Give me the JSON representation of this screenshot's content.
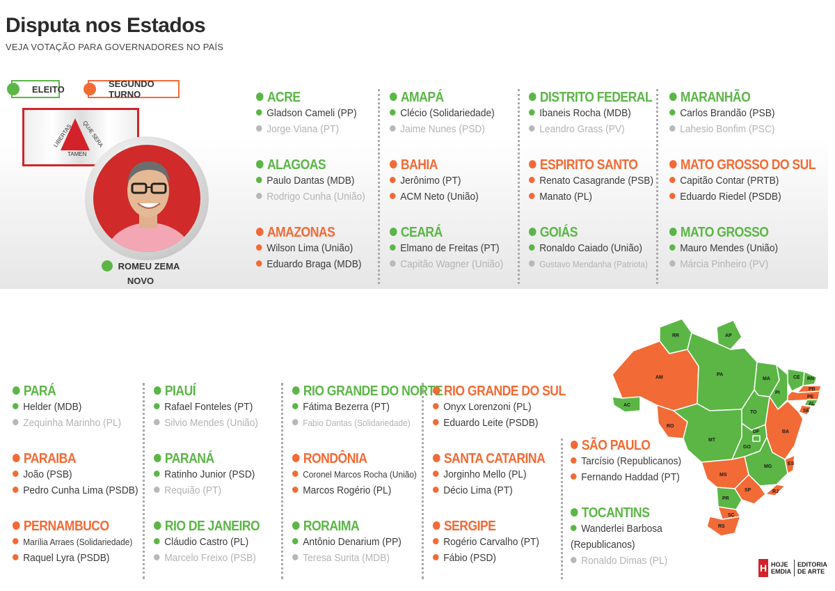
{
  "header": {
    "title": "Disputa nos Estados",
    "subtitle": "VEJA VOTAÇÃO PARA GOVERNADORES NO PAÍS"
  },
  "legend": {
    "elected": "ELEITO",
    "runoff": "SEGUNDO TURNO"
  },
  "colors": {
    "elected": "#5bb646",
    "runoff": "#f26a35",
    "lost": "#b8b8b8"
  },
  "flag": {
    "motto_1": "LIBERTAS",
    "motto_2": "QUÆ SERA",
    "motto_3": "TAMEN"
  },
  "featured": {
    "name": "ROMEU ZEMA",
    "party": "NOVO"
  },
  "states": {
    "acre": {
      "name": "ACRE",
      "status": "elected",
      "c1": "Gladson Cameli (PP)",
      "c2": "Jorge Viana (PT)"
    },
    "alagoas": {
      "name": "ALAGOAS",
      "status": "elected",
      "c1": "Paulo Dantas (MDB)",
      "c2": "Rodrigo Cunha (União)"
    },
    "amazonas": {
      "name": "AMAZONAS",
      "status": "runoff",
      "c1": "Wilson Lima (União)",
      "c2": "Eduardo Braga (MDB)"
    },
    "amapa": {
      "name": "AMAPÁ",
      "status": "elected",
      "c1": "Clécio (Solidariedade)",
      "c2": "Jaime Nunes (PSD)"
    },
    "bahia": {
      "name": "BAHIA",
      "status": "runoff",
      "c1": "Jerônimo (PT)",
      "c2": "ACM Neto (União)"
    },
    "ceara": {
      "name": "CEARÁ",
      "status": "elected",
      "c1": "Elmano de Freitas (PT)",
      "c2": "Capitão Wagner (União)"
    },
    "df": {
      "name": "DISTRITO FEDERAL",
      "status": "elected",
      "c1": "Ibaneis Rocha (MDB)",
      "c2": "Leandro Grass (PV)"
    },
    "es": {
      "name": "ESPIRITO SANTO",
      "status": "runoff",
      "c1": "Renato Casagrande (PSB)",
      "c2": "Manato (PL)"
    },
    "goias": {
      "name": "GOIÁS",
      "status": "elected",
      "c1": "Ronaldo Caiado (União)",
      "c2": "Gustavo Mendanha (Patriota)"
    },
    "maranhao": {
      "name": "MARANHÃO",
      "status": "elected",
      "c1": "Carlos Brandão (PSB)",
      "c2": "Lahesio Bonfim (PSC)"
    },
    "ms": {
      "name": "MATO GROSSO DO SUL",
      "status": "runoff",
      "c1": "Capitão Contar (PRTB)",
      "c2": "Eduardo Riedel (PSDB)"
    },
    "mt": {
      "name": "MATO GROSSO",
      "status": "elected",
      "c1": "Mauro Mendes (União)",
      "c2": "Márcia Pinheiro (PV)"
    },
    "para": {
      "name": "PARÁ",
      "status": "elected",
      "c1": "Helder (MDB)",
      "c2": "Zequinha Marinho (PL)"
    },
    "paraiba": {
      "name": "PARAIBA",
      "status": "runoff",
      "c1": "João (PSB)",
      "c2": "Pedro Cunha Lima (PSDB)"
    },
    "pernambuco": {
      "name": "PERNAMBUCO",
      "status": "runoff",
      "c1": "Marília Arraes (Solidariedade)",
      "c2": "Raquel Lyra (PSDB)"
    },
    "piaui": {
      "name": "PIAUÍ",
      "status": "elected",
      "c1": "Rafael Fonteles (PT)",
      "c2": "Silvio Mendes (União)"
    },
    "parana": {
      "name": "PARANÁ",
      "status": "elected",
      "c1": "Ratinho Junior (PSD)",
      "c2": "Requião (PT)"
    },
    "rj": {
      "name": "RIO DE JANEIRO",
      "status": "elected",
      "c1": "Cláudio Castro (PL)",
      "c2": "Marcelo Freixo (PSB)"
    },
    "rn": {
      "name": "RIO GRANDE DO NORTE",
      "status": "elected",
      "c1": "Fátima Bezerra (PT)",
      "c2": "Fabio Dantas (Solidariedade)"
    },
    "rondonia": {
      "name": "RONDÔNIA",
      "status": "runoff",
      "c1": "Coronel Marcos Rocha (União)",
      "c2": "Marcos Rogério (PL)"
    },
    "roraima": {
      "name": "RORAIMA",
      "status": "elected",
      "c1": "Antônio Denarium (PP)",
      "c2": "Teresa Surita (MDB)"
    },
    "rs": {
      "name": "RIO GRANDE DO SUL",
      "status": "runoff",
      "c1": "Onyx Lorenzoni (PL)",
      "c2": "Eduardo Leite (PSDB)"
    },
    "sc": {
      "name": "SANTA CATARINA",
      "status": "runoff",
      "c1": "Jorginho Mello (PL)",
      "c2": "Décio Lima (PT)"
    },
    "sergipe": {
      "name": "SERGIPE",
      "status": "runoff",
      "c1": "Rogério Carvalho (PT)",
      "c2": "Fábio (PSD)"
    },
    "sp": {
      "name": "SÃO PAULO",
      "status": "runoff",
      "c1": "Tarcísio (Republicanos)",
      "c2": "Fernando Haddad (PT)"
    },
    "tocantins": {
      "name": "TOCANTINS",
      "status": "elected",
      "c1": "Wanderlei Barbosa (Republicanos)",
      "c2": "Ronaldo Dimas (PL)"
    }
  },
  "map_labels": {
    "rr": "RR",
    "ap": "AP",
    "am": "AM",
    "pa": "PA",
    "ma": "MA",
    "ce": "CE",
    "rn": "RN",
    "pb": "PB",
    "pe": "PE",
    "al": "AL",
    "se": "SE",
    "pi": "PI",
    "to": "TO",
    "ac": "AC",
    "ro": "RO",
    "mt": "MT",
    "ba": "BA",
    "df": "DF",
    "go": "GO",
    "mg": "MG",
    "es": "ES",
    "ms": "MS",
    "sp": "SP",
    "rj": "RJ",
    "pr": "PR",
    "sc": "SC",
    "rs": "RS"
  },
  "logo": {
    "mark": "H",
    "brand_1": "HOJE",
    "brand_2": "EMDIA",
    "dept_1": "EDITORIA",
    "dept_2": "DE ARTE"
  }
}
